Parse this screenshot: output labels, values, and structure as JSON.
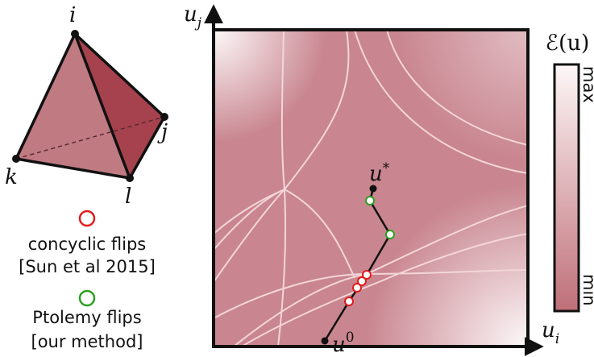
{
  "tetrahedron": {
    "vertices": [
      {
        "label": "i"
      },
      {
        "label": "j"
      },
      {
        "label": "k"
      },
      {
        "label": "l"
      }
    ]
  },
  "legend": {
    "items": [
      {
        "lines": [
          "concyclic flips",
          "[Sun et al 2015]"
        ]
      },
      {
        "lines": [
          "Ptolemy flips",
          "[our method]"
        ]
      }
    ]
  },
  "plot": {
    "x_axis": {
      "base": "u",
      "sub": "i"
    },
    "y_axis": {
      "base": "u",
      "sub": "j"
    },
    "start": {
      "base": "u",
      "sup": "0"
    },
    "end": {
      "base": "u",
      "sup": "*"
    }
  },
  "colorbar": {
    "title": "ℰ(u)",
    "max": "max",
    "min": "min"
  }
}
